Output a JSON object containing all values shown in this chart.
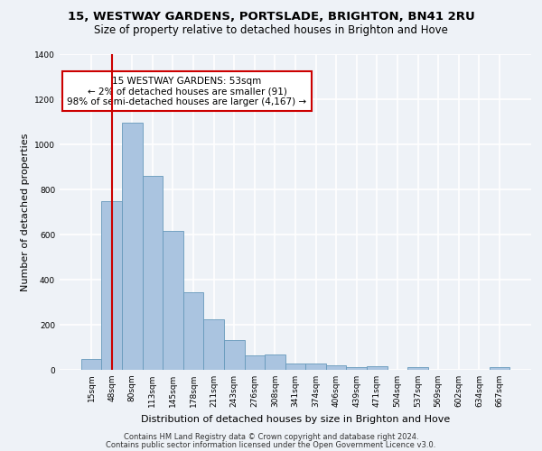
{
  "title1": "15, WESTWAY GARDENS, PORTSLADE, BRIGHTON, BN41 2RU",
  "title2": "Size of property relative to detached houses in Brighton and Hove",
  "xlabel": "Distribution of detached houses by size in Brighton and Hove",
  "ylabel": "Number of detached properties",
  "footer1": "Contains HM Land Registry data © Crown copyright and database right 2024.",
  "footer2": "Contains public sector information licensed under the Open Government Licence v3.0.",
  "bar_labels": [
    "15sqm",
    "48sqm",
    "80sqm",
    "113sqm",
    "145sqm",
    "178sqm",
    "211sqm",
    "243sqm",
    "276sqm",
    "308sqm",
    "341sqm",
    "374sqm",
    "406sqm",
    "439sqm",
    "471sqm",
    "504sqm",
    "537sqm",
    "569sqm",
    "602sqm",
    "634sqm",
    "667sqm"
  ],
  "bar_values": [
    50,
    750,
    1095,
    860,
    615,
    345,
    225,
    133,
    63,
    68,
    30,
    30,
    22,
    12,
    18,
    0,
    12,
    0,
    0,
    0,
    12
  ],
  "bar_color": "#aac4e0",
  "bar_edge_color": "#6699bb",
  "vline_x": 1,
  "vline_color": "#cc0000",
  "annotation_text": "15 WESTWAY GARDENS: 53sqm\n← 2% of detached houses are smaller (91)\n98% of semi-detached houses are larger (4,167) →",
  "annotation_box_color": "#ffffff",
  "annotation_border_color": "#cc0000",
  "ylim": [
    0,
    1400
  ],
  "background_color": "#eef2f7",
  "grid_color": "#ffffff",
  "title1_fontsize": 9.5,
  "title2_fontsize": 8.5,
  "xlabel_fontsize": 8,
  "ylabel_fontsize": 8,
  "tick_fontsize": 6.5,
  "footer_fontsize": 6,
  "annot_fontsize": 7.5
}
